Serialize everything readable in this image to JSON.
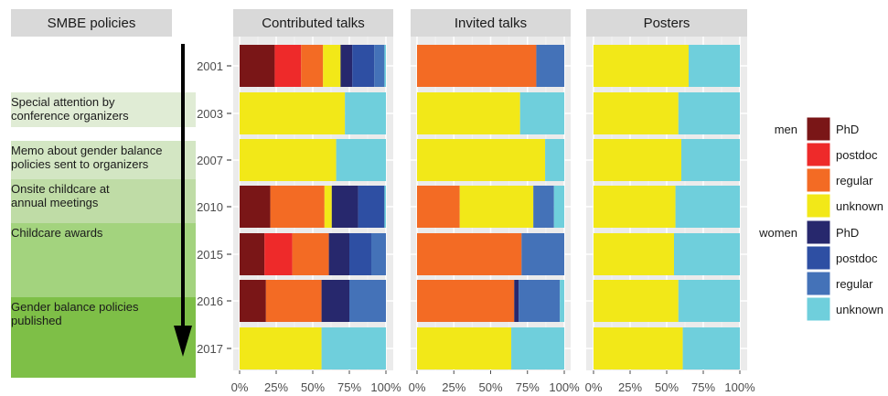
{
  "chart_data": {
    "type": "bar",
    "orientation": "horizontal",
    "stacked": true,
    "normalized": true,
    "policies_header": "SMBE policies",
    "policies": [
      {
        "label": "Special attention by\nconference organizers"
      },
      {
        "label": "Memo about gender balance\npolicies sent to organizers"
      },
      {
        "label": "Onsite childcare at\nannual meetings"
      },
      {
        "label": "Childcare awards"
      },
      {
        "label": "Gender balance policies\npublished"
      }
    ],
    "categories": [
      "2001",
      "2003",
      "2007",
      "2010",
      "2015",
      "2016",
      "2017"
    ],
    "xticks": [
      "0%",
      "25%",
      "50%",
      "75%",
      "100%"
    ],
    "xlim": [
      0,
      1
    ],
    "colors": {
      "men_phd": "#7a1617",
      "men_postdoc": "#ee2a2a",
      "men_regular": "#f36b24",
      "men_unknown": "#f2e818",
      "women_phd": "#27286d",
      "women_postdoc": "#2e4fa3",
      "women_regular": "#4472b8",
      "women_unknown": "#6fcfdc",
      "policy_shades": [
        "#e0ecd5",
        "#d3e6c3",
        "#bfdca6",
        "#a3d37e",
        "#7ebf47"
      ]
    },
    "legend": {
      "placement": "right",
      "groups": [
        {
          "name": "men",
          "keys": [
            "men_phd",
            "men_postdoc",
            "men_regular",
            "men_unknown"
          ],
          "labels": [
            "PhD",
            "postdoc",
            "regular",
            "unknown"
          ]
        },
        {
          "name": "women",
          "keys": [
            "women_phd",
            "women_postdoc",
            "women_regular",
            "women_unknown"
          ],
          "labels": [
            "PhD",
            "postdoc",
            "regular",
            "unknown"
          ]
        }
      ]
    },
    "panels": [
      {
        "title": "Contributed talks",
        "series_order": [
          "men_phd",
          "men_postdoc",
          "men_regular",
          "men_unknown",
          "women_phd",
          "women_postdoc",
          "women_regular",
          "women_unknown"
        ],
        "rows": [
          [
            0.24,
            0.18,
            0.15,
            0.12,
            0.08,
            0.15,
            0.07,
            0.01
          ],
          [
            0,
            0,
            0,
            0.72,
            0,
            0,
            0,
            0.28
          ],
          [
            0,
            0,
            0,
            0.66,
            0,
            0,
            0,
            0.34
          ],
          [
            0.21,
            0,
            0.37,
            0.05,
            0.18,
            0.18,
            0,
            0.01
          ],
          [
            0.17,
            0.19,
            0.25,
            0,
            0.14,
            0.15,
            0.1,
            0
          ],
          [
            0.18,
            0,
            0.38,
            0,
            0.19,
            0,
            0.25,
            0
          ],
          [
            0,
            0,
            0,
            0.56,
            0,
            0,
            0,
            0.44
          ]
        ]
      },
      {
        "title": "Invited talks",
        "series_order": [
          "men_phd",
          "men_postdoc",
          "men_regular",
          "men_unknown",
          "women_phd",
          "women_postdoc",
          "women_regular",
          "women_unknown"
        ],
        "rows": [
          [
            0,
            0,
            0.81,
            0,
            0,
            0,
            0.19,
            0
          ],
          [
            0,
            0,
            0,
            0.7,
            0,
            0,
            0,
            0.3
          ],
          [
            0,
            0,
            0,
            0.87,
            0,
            0,
            0,
            0.13
          ],
          [
            0,
            0,
            0.29,
            0.5,
            0,
            0,
            0.14,
            0.07
          ],
          [
            0,
            0,
            0.71,
            0,
            0,
            0,
            0.29,
            0
          ],
          [
            0,
            0,
            0.66,
            0,
            0.03,
            0,
            0.28,
            0.03
          ],
          [
            0,
            0,
            0,
            0.64,
            0,
            0,
            0,
            0.36
          ]
        ]
      },
      {
        "title": "Posters",
        "series_order": [
          "men_phd",
          "men_postdoc",
          "men_regular",
          "men_unknown",
          "women_phd",
          "women_postdoc",
          "women_regular",
          "women_unknown"
        ],
        "rows": [
          [
            0,
            0,
            0,
            0.65,
            0,
            0,
            0,
            0.35
          ],
          [
            0,
            0,
            0,
            0.58,
            0,
            0,
            0,
            0.42
          ],
          [
            0,
            0,
            0,
            0.6,
            0,
            0,
            0,
            0.4
          ],
          [
            0,
            0,
            0,
            0.56,
            0,
            0,
            0,
            0.44
          ],
          [
            0,
            0,
            0,
            0.55,
            0,
            0,
            0,
            0.45
          ],
          [
            0,
            0,
            0,
            0.58,
            0,
            0,
            0,
            0.42
          ],
          [
            0,
            0,
            0,
            0.61,
            0,
            0,
            0,
            0.39
          ]
        ]
      }
    ]
  }
}
